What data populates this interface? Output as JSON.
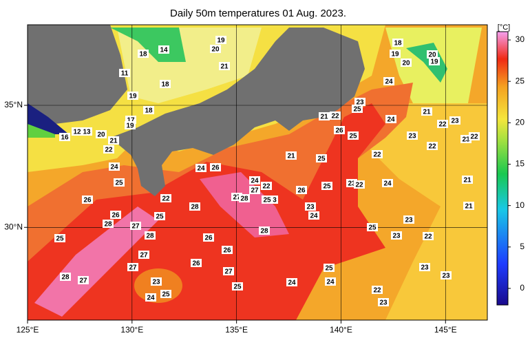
{
  "map": {
    "title": "Daily 50m temperatures 01 Aug. 2023.",
    "lonlim": [
      125,
      147
    ],
    "latlim": [
      26.2,
      38.3
    ],
    "lonticks": [
      {
        "value": 125,
        "label": "125°E"
      },
      {
        "value": 130,
        "label": "130°E"
      },
      {
        "value": 135,
        "label": "135°E"
      },
      {
        "value": 140,
        "label": "140°E"
      },
      {
        "value": 145,
        "label": "145°E"
      }
    ],
    "latticks": [
      {
        "value": 30,
        "label": "30°N"
      },
      {
        "value": 35,
        "label": "35°N"
      }
    ],
    "grid": true,
    "colorbar": {
      "label": "[°C]",
      "lim": [
        -2,
        31
      ],
      "ticks": [
        0,
        5,
        10,
        15,
        20,
        25,
        30
      ]
    },
    "contour_labels": [
      19,
      20,
      18,
      14,
      21,
      11,
      18,
      19,
      18,
      17,
      19,
      12,
      13,
      20,
      16,
      21,
      22,
      24,
      25,
      26,
      26,
      28,
      27,
      25,
      22,
      28,
      24,
      26,
      28,
      25,
      26,
      27,
      27,
      26,
      26,
      28,
      27,
      23,
      24,
      25,
      27,
      25,
      24,
      27,
      22,
      27,
      28,
      25,
      3,
      28,
      21,
      26,
      23,
      24,
      25,
      25,
      25,
      24,
      24,
      21,
      22,
      26,
      25,
      25,
      23,
      24,
      18,
      19,
      20,
      20,
      19,
      21,
      22,
      23,
      24,
      23,
      22,
      23,
      22,
      22,
      23,
      22,
      24,
      21,
      21,
      25,
      23,
      23,
      22,
      23,
      23,
      22,
      23
    ]
  }
}
